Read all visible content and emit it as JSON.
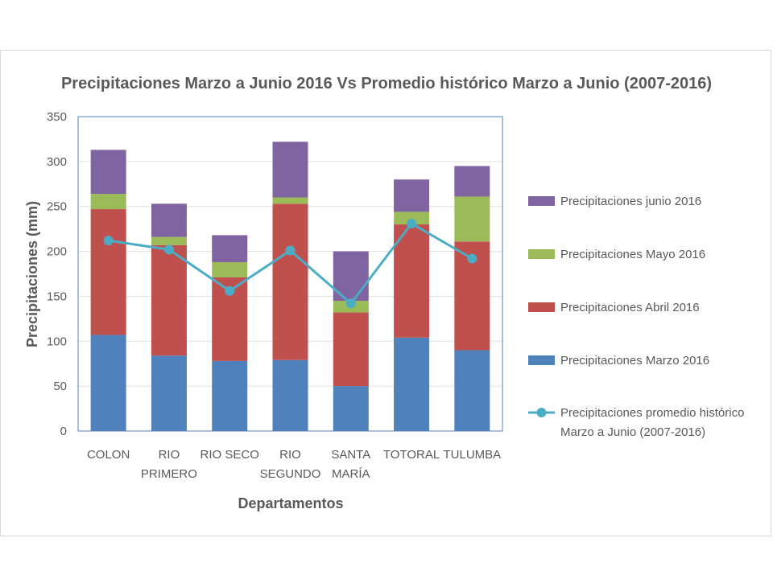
{
  "chart_data": {
    "type": "bar",
    "stacked": true,
    "title": "Precipitaciones Marzo a Junio 2016 Vs Promedio histórico Marzo a Junio (2007-2016)",
    "xlabel": "Departamentos",
    "ylabel": "Precipitaciones (mm)",
    "ylim": [
      0,
      350
    ],
    "yticks": [
      0,
      50,
      100,
      150,
      200,
      250,
      300,
      350
    ],
    "grid": true,
    "legend_position": "right",
    "categories": [
      [
        "COLON"
      ],
      [
        "RIO",
        "PRIMERO"
      ],
      [
        "RIO SECO"
      ],
      [
        "RIO",
        "SEGUNDO"
      ],
      [
        "SANTA",
        "MARÍA"
      ],
      [
        "TOTORAL"
      ],
      [
        "TULUMBA"
      ]
    ],
    "series": [
      {
        "name": "Precipitaciones Marzo 2016",
        "kind": "bar",
        "color": "#4f81bd",
        "values": [
          107,
          84,
          78,
          79,
          50,
          104,
          90
        ]
      },
      {
        "name": "Precipitaciones Abril 2016",
        "kind": "bar",
        "color": "#c0504d",
        "values": [
          140,
          123,
          93,
          174,
          82,
          126,
          121
        ]
      },
      {
        "name": "Precipitaciones Mayo 2016",
        "kind": "bar",
        "color": "#9bbb59",
        "values": [
          17,
          9,
          17,
          7,
          13,
          14,
          50
        ]
      },
      {
        "name": "Precipitaciones junio 2016",
        "kind": "bar",
        "color": "#8064a2",
        "values": [
          49,
          37,
          30,
          62,
          55,
          36,
          34
        ]
      },
      {
        "name": "Precipitaciones promedio histórico Marzo a Junio (2007-2016)",
        "kind": "line",
        "color": "#4bacc6",
        "values": [
          212,
          202,
          156,
          201,
          142,
          231,
          192
        ]
      }
    ],
    "legend_order": [
      3,
      2,
      1,
      0,
      4
    ]
  }
}
